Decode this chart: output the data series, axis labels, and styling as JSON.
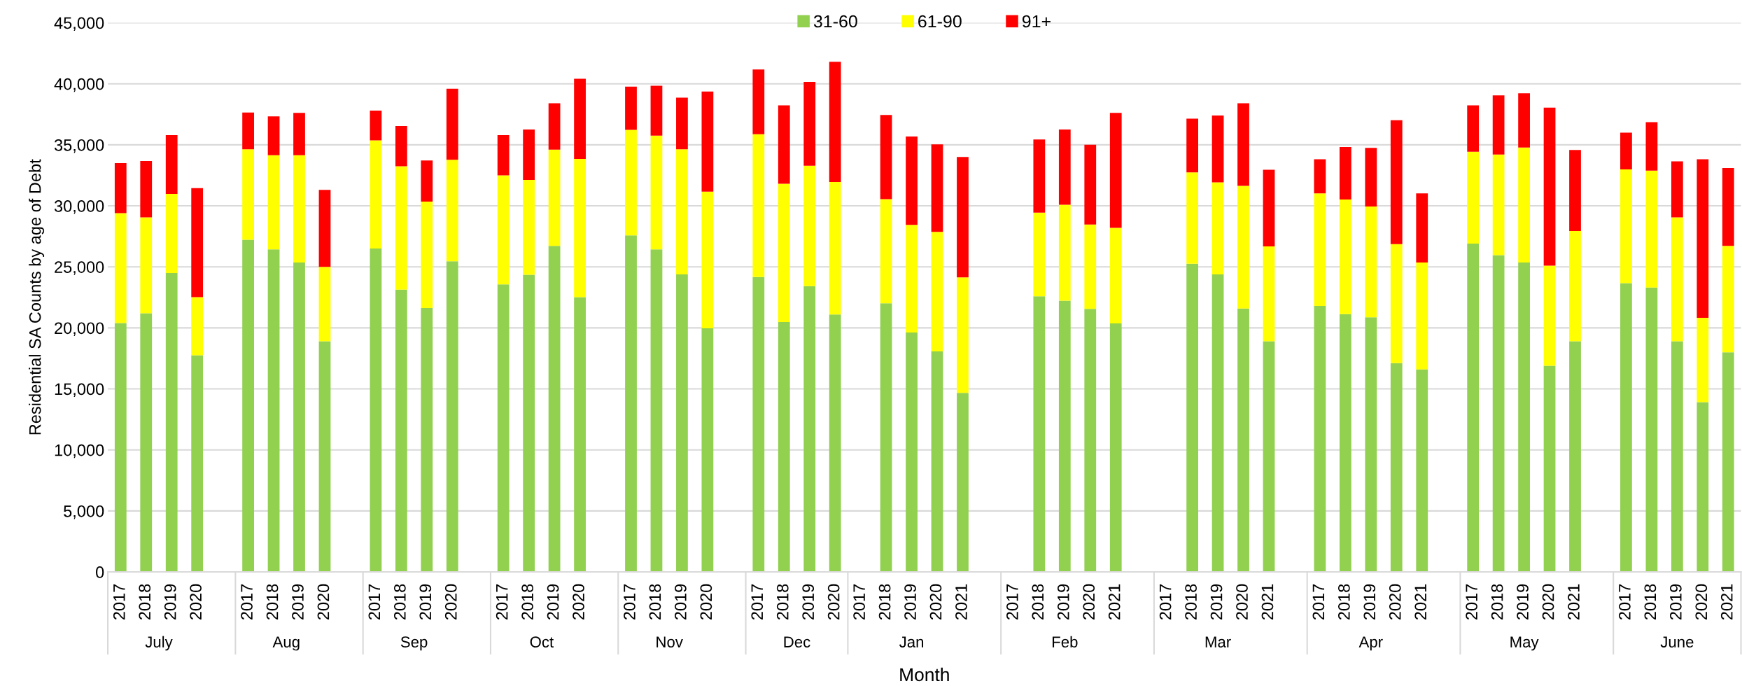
{
  "chart_data": {
    "type": "bar",
    "stacked": true,
    "xlabel": "Month",
    "ylabel": "Residential SA Counts by age of Debt",
    "categories": [
      "2017",
      "2018",
      "2019",
      "2020",
      null,
      "2017",
      "2018",
      "2019",
      "2020",
      null,
      "2017",
      "2018",
      "2019",
      "2020",
      null,
      "2017",
      "2018",
      "2019",
      "2020",
      null,
      "2017",
      "2018",
      "2019",
      "2020",
      null,
      "2017",
      "2018",
      "2019",
      "2020",
      "2017",
      "2018",
      "2019",
      "2020",
      "2021",
      null,
      "2017",
      "2018",
      "2019",
      "2020",
      "2021",
      null,
      "2017",
      "2018",
      "2019",
      "2020",
      "2021",
      null,
      "2017",
      "2018",
      "2019",
      "2020",
      "2021",
      null,
      "2017",
      "2018",
      "2019",
      "2020",
      "2021",
      null,
      "2017",
      "2018",
      "2019",
      "2020",
      "2021"
    ],
    "series": [
      {
        "name": "31-60",
        "color": "#92d050",
        "values": [
          20400,
          21190,
          24490,
          17750,
          null,
          27220,
          26430,
          25350,
          18900,
          null,
          26500,
          23130,
          21620,
          25460,
          null,
          23560,
          24350,
          26720,
          22520,
          null,
          27580,
          26430,
          24380,
          19970,
          null,
          24170,
          20480,
          23420,
          21090,
          null,
          22020,
          19620,
          18070,
          14670,
          null,
          null,
          22590,
          22230,
          21550,
          20370,
          null,
          null,
          25250,
          24380,
          21590,
          18900,
          null,
          21800,
          21120,
          20870,
          17110,
          16600,
          null,
          26900,
          25960,
          25350,
          16890,
          18900,
          null,
          23670,
          23310,
          18900,
          13910,
          18000
        ]
      },
      {
        "name": "61-90",
        "color": "#ffff00",
        "values": [
          9000,
          7860,
          6490,
          4770,
          null,
          7420,
          7710,
          8790,
          6090,
          null,
          8860,
          10110,
          8720,
          8320,
          null,
          8930,
          7780,
          7880,
          11330,
          null,
          8640,
          9320,
          10260,
          11190,
          null,
          11690,
          11330,
          9860,
          10860,
          null,
          8530,
          8820,
          9790,
          9460,
          null,
          null,
          6850,
          7860,
          6920,
          7820,
          null,
          null,
          7490,
          7540,
          10040,
          7780,
          null,
          9220,
          9400,
          9070,
          9750,
          8750,
          null,
          7530,
          8250,
          9430,
          8210,
          9030,
          null,
          9320,
          9570,
          10150,
          6920,
          8720
        ]
      },
      {
        "name": "91+",
        "color": "#ff0000",
        "values": [
          4100,
          4620,
          4810,
          8930,
          null,
          3010,
          3190,
          3480,
          6320,
          null,
          2440,
          3300,
          3370,
          5810,
          null,
          3300,
          4120,
          3800,
          6560,
          null,
          3550,
          4090,
          4230,
          8210,
          null,
          5310,
          6420,
          6880,
          9860,
          null,
          6890,
          7240,
          7180,
          9870,
          null,
          null,
          5990,
          6160,
          6530,
          9430,
          null,
          null,
          4410,
          5480,
          6770,
          6280,
          null,
          2800,
          4300,
          4810,
          10150,
          5670,
          null,
          3800,
          4840,
          4450,
          12950,
          6640,
          null,
          3010,
          3980,
          4590,
          12990,
          6380
        ]
      }
    ],
    "ylim": [
      0,
      45000
    ],
    "yticks": [
      0,
      {
        "value": 5000,
        "label": "5,000"
      },
      {
        "value": 10000,
        "label": "10,000"
      },
      {
        "value": 15000,
        "label": "15,000"
      },
      {
        "value": 20000,
        "label": "20,000"
      },
      {
        "value": 25000,
        "label": "25,000"
      },
      {
        "value": 30000,
        "label": "30,000"
      },
      {
        "value": 35000,
        "label": "35,000"
      },
      {
        "value": 40000,
        "label": "40,000"
      },
      {
        "value": 45000,
        "label": "45,000"
      }
    ],
    "grid": "y",
    "legend": "top",
    "annotations": [
      "July",
      "Aug",
      "Sep",
      "Oct",
      "Nov",
      "Dec",
      "Jan",
      "Feb",
      "Mar",
      "Apr",
      "May",
      "June"
    ]
  }
}
